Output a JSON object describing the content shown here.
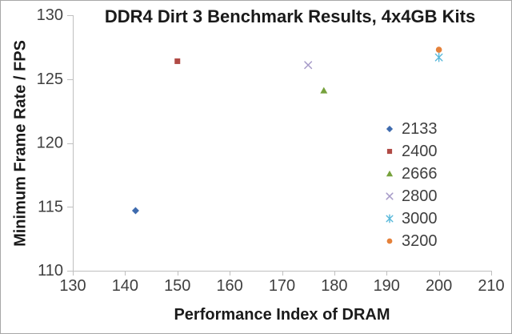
{
  "chart_data": {
    "type": "scatter",
    "title": "DDR4 Dirt 3 Benchmark Results, 4x4GB Kits",
    "xlabel": "Performance Index of DRAM",
    "ylabel": "Minimum Frame Rate / FPS",
    "xlim": [
      130,
      210
    ],
    "ylim": [
      110,
      130
    ],
    "xticks": [
      130,
      140,
      150,
      160,
      170,
      180,
      190,
      200,
      210
    ],
    "yticks": [
      110,
      115,
      120,
      125,
      130
    ],
    "grid": false,
    "legend_position": "right",
    "series": [
      {
        "name": "2133",
        "marker": "diamond",
        "color": "#3E6BAE",
        "points": [
          [
            142,
            114.7
          ]
        ]
      },
      {
        "name": "2400",
        "marker": "square",
        "color": "#B04A45",
        "points": [
          [
            150,
            126.4
          ]
        ]
      },
      {
        "name": "2666",
        "marker": "triangle",
        "color": "#76A13C",
        "points": [
          [
            178,
            124.1
          ]
        ]
      },
      {
        "name": "2800",
        "marker": "x",
        "color": "#A79BC8",
        "points": [
          [
            175,
            126.1
          ]
        ]
      },
      {
        "name": "3000",
        "marker": "star",
        "color": "#58B8DA",
        "points": [
          [
            200,
            126.7
          ]
        ]
      },
      {
        "name": "3200",
        "marker": "circle",
        "color": "#E5813A",
        "points": [
          [
            200,
            127.3
          ]
        ]
      }
    ]
  },
  "colors": {
    "axis": "#BFBFBF",
    "tick_text": "#3F3F3F",
    "title_text": "#1A1A1A",
    "frame_border": "#A8A8A8",
    "background": "#FFFFFF"
  }
}
